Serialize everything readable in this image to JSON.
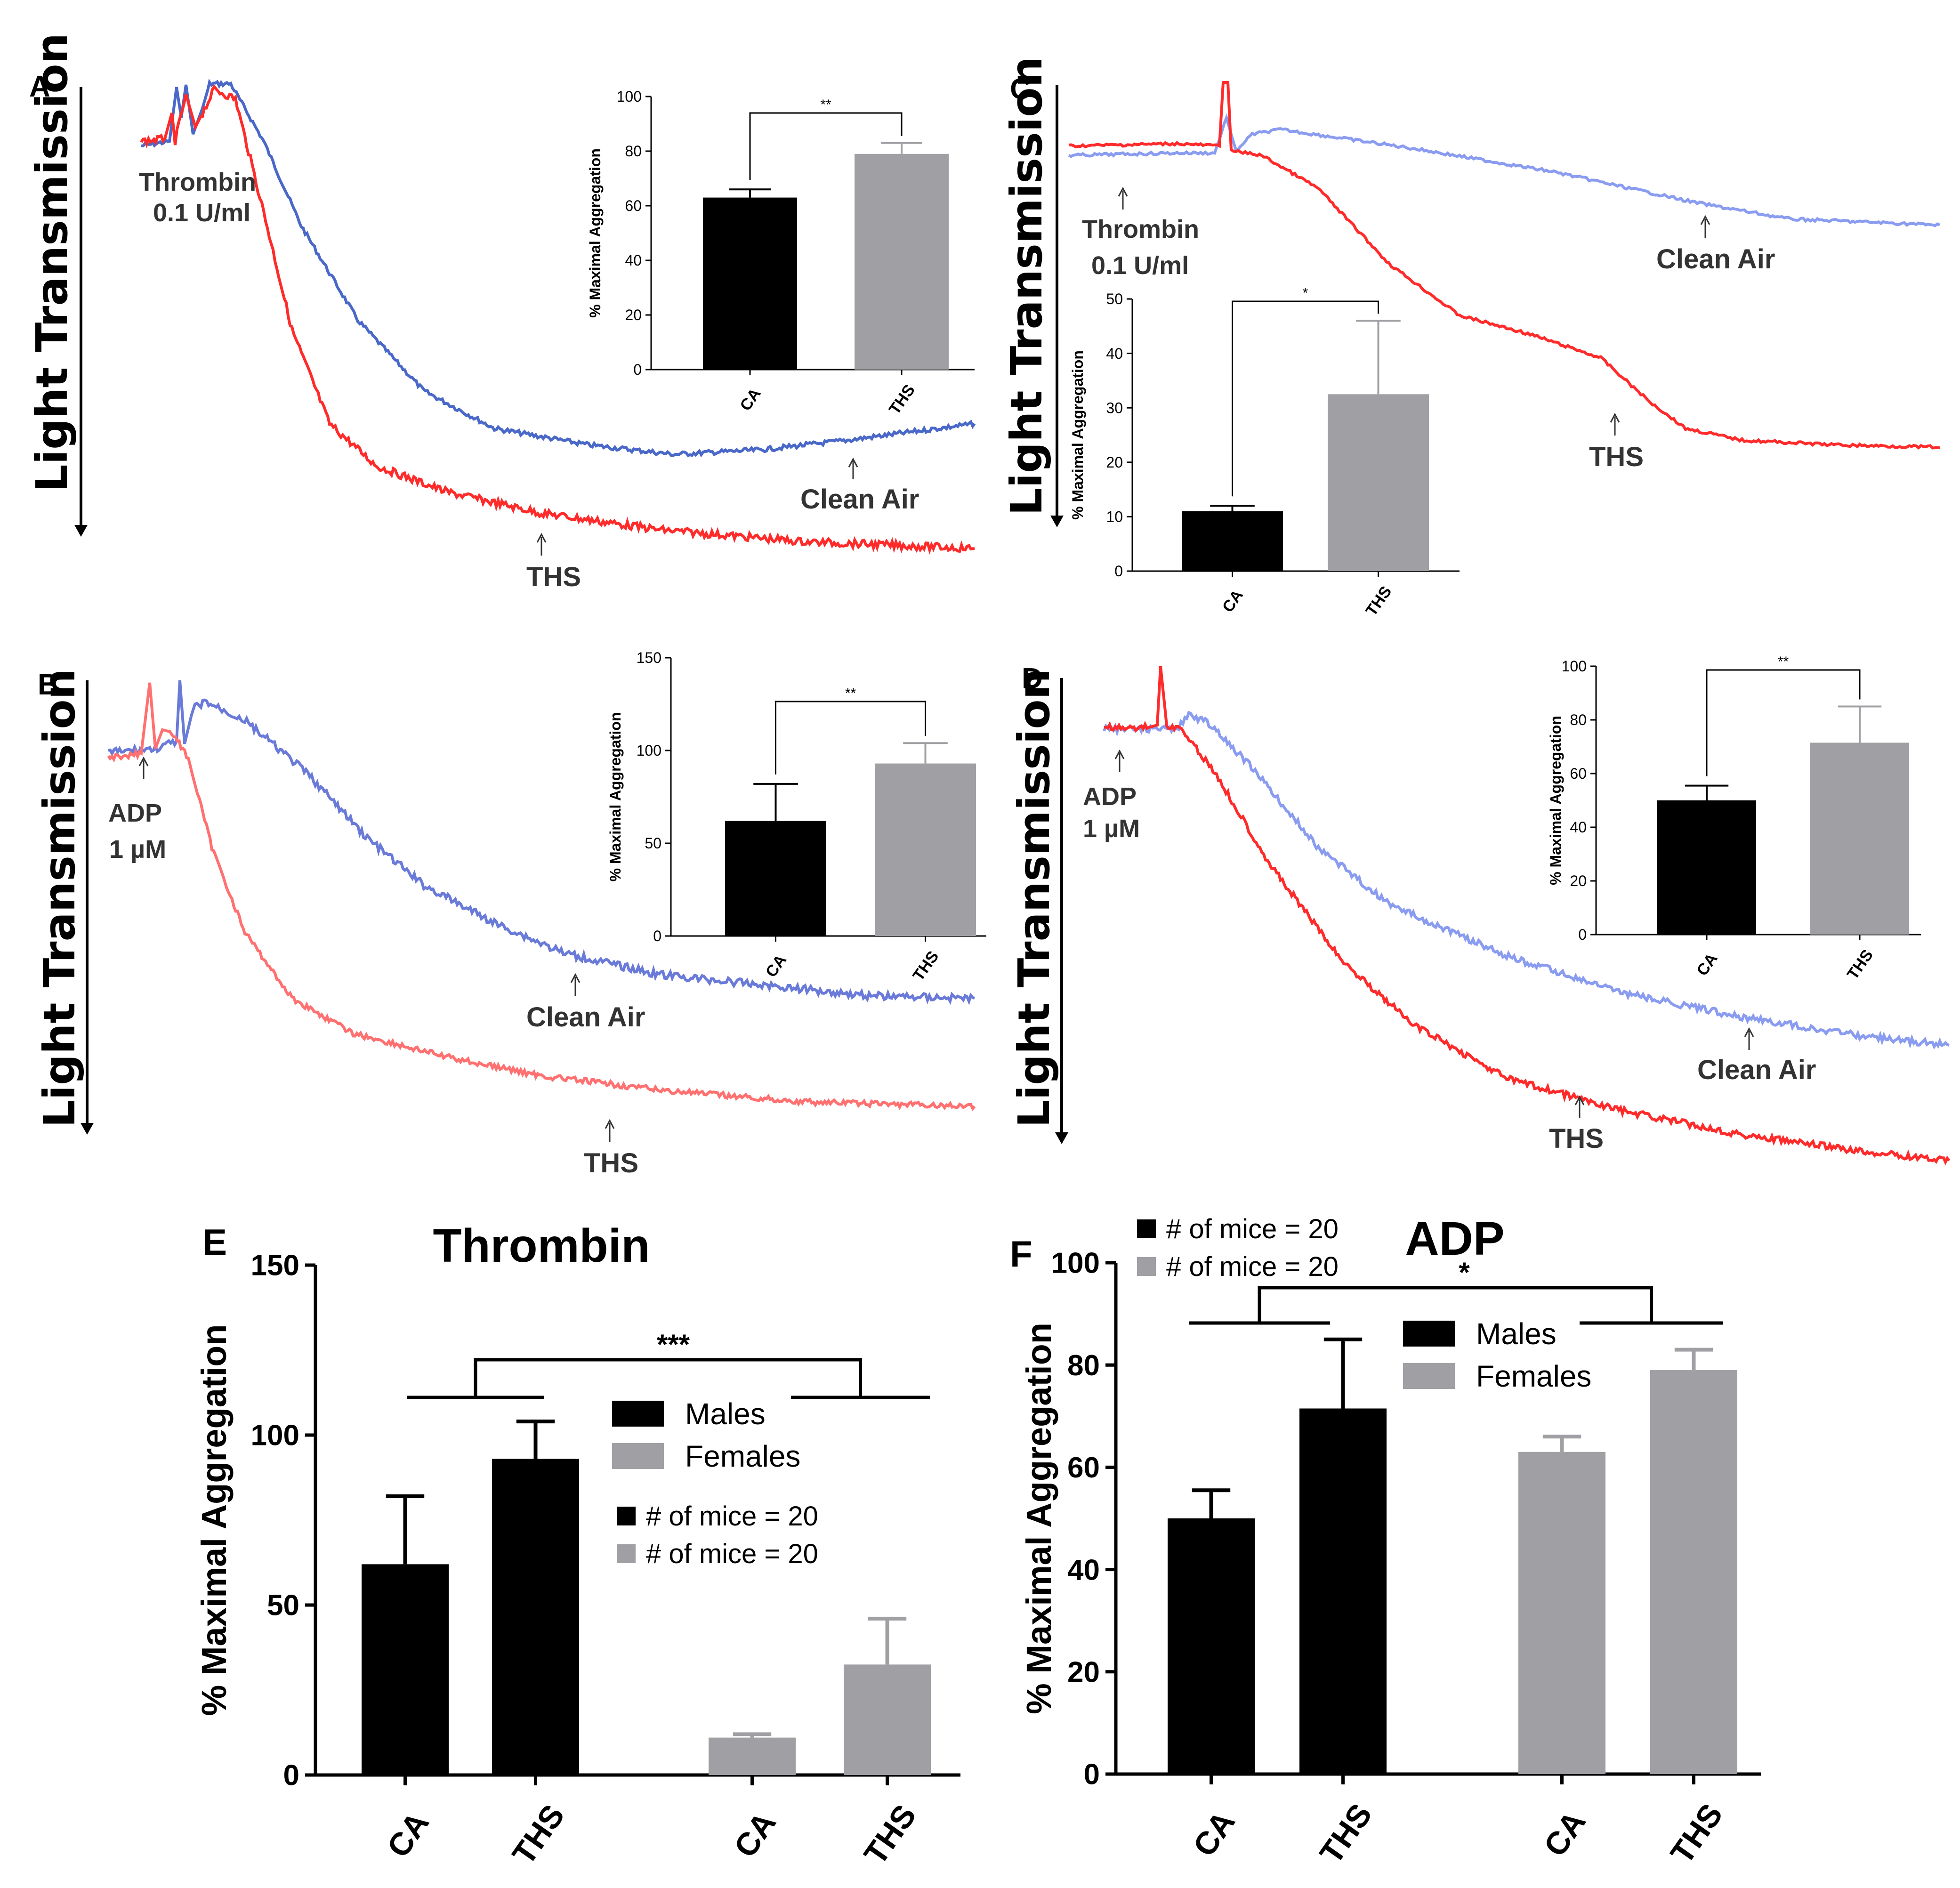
{
  "figure": {
    "background": "#ffffff",
    "colors": {
      "red": "#ff2b2b",
      "blue": "#4a68c8",
      "black": "#000000",
      "grey": "#a0a0a4"
    }
  },
  "panels": {
    "A": {
      "letter": "A",
      "ylabel": "Light Transmission",
      "agonist_line1": "Thrombin",
      "agonist_line2": "0.1 U/ml",
      "label_clean": "Clean Air",
      "label_ths": "THS"
    },
    "B": {
      "letter": "B",
      "ylabel": "Light Transmission",
      "agonist_line1": "ADP",
      "agonist_line2": "1 µM",
      "label_clean": "Clean Air",
      "label_ths": "THS"
    },
    "C": {
      "letter": "C",
      "ylabel": "Light Transmission",
      "agonist_line1": "Thrombin",
      "agonist_line2": "0.1 U/ml",
      "label_clean": "Clean Air",
      "label_ths": "THS"
    },
    "D": {
      "letter": "D",
      "ylabel": "Light Transmission",
      "agonist_line1": "ADP",
      "agonist_line2": "1 µM",
      "label_clean": "Clean Air",
      "label_ths": "THS"
    },
    "E": {
      "letter": "E"
    },
    "F": {
      "letter": "F"
    }
  },
  "chart_data": [
    {
      "id": "A_inset",
      "type": "bar",
      "categories": [
        "CA",
        "THS"
      ],
      "values": [
        63,
        79
      ],
      "errors": [
        3,
        4
      ],
      "ylabel": "% Maximal Aggregation",
      "ylim": [
        0,
        100
      ],
      "yticks": [
        0,
        20,
        40,
        60,
        80,
        100
      ],
      "tick_labels": [
        "0",
        "20",
        "40",
        "60",
        "80",
        "100"
      ],
      "significance": "**"
    },
    {
      "id": "B_inset",
      "type": "bar",
      "categories": [
        "CA",
        "THS"
      ],
      "values": [
        62,
        93
      ],
      "errors": [
        20,
        11
      ],
      "ylabel": "% Maximal Aggregation",
      "ylim": [
        0,
        150
      ],
      "yticks": [
        0,
        50,
        100,
        150
      ],
      "tick_labels": [
        "0",
        "50",
        "100",
        "150"
      ],
      "significance": "**"
    },
    {
      "id": "C_inset",
      "type": "bar",
      "categories": [
        "CA",
        "THS"
      ],
      "values": [
        11,
        32.5
      ],
      "errors": [
        1,
        13.5
      ],
      "ylabel": "% Maximal Aggregation",
      "ylim": [
        0,
        50
      ],
      "yticks": [
        0,
        10,
        20,
        30,
        40,
        50
      ],
      "tick_labels": [
        "0",
        "10",
        "20",
        "30",
        "40",
        "50"
      ],
      "significance": "*"
    },
    {
      "id": "D_inset",
      "type": "bar",
      "categories": [
        "CA",
        "THS"
      ],
      "values": [
        50,
        71.5
      ],
      "errors": [
        5.5,
        13.5
      ],
      "ylabel": "% Maximal Aggregation",
      "ylim": [
        0,
        100
      ],
      "yticks": [
        0,
        20,
        40,
        60,
        80,
        100
      ],
      "tick_labels": [
        "0",
        "20",
        "40",
        "60",
        "80",
        "100"
      ],
      "significance": "**"
    },
    {
      "id": "E",
      "type": "bar",
      "title": "Thrombin",
      "ylabel": "% Maximal Aggregation",
      "ylim": [
        0,
        150
      ],
      "yticks": [
        0,
        50,
        100,
        150
      ],
      "tick_labels": [
        "0",
        "50",
        "100",
        "150"
      ],
      "categories": [
        "CA",
        "THS",
        "CA",
        "THS"
      ],
      "values": [
        62,
        93,
        11,
        32.5
      ],
      "errors": [
        20,
        11,
        1,
        13.5
      ],
      "bar_colors": [
        "#000000",
        "#000000",
        "#a0a0a4",
        "#a0a0a4"
      ],
      "legend": [
        "Males",
        "Females"
      ],
      "n_legend": [
        "# of mice = 20",
        "# of mice = 20"
      ],
      "significance": "***"
    },
    {
      "id": "F",
      "type": "bar",
      "title": "ADP",
      "ylabel": "% Maximal Aggregation",
      "ylim": [
        0,
        100
      ],
      "yticks": [
        0,
        20,
        40,
        60,
        80,
        100
      ],
      "tick_labels": [
        "0",
        "20",
        "40",
        "60",
        "80",
        "100"
      ],
      "categories": [
        "CA",
        "THS",
        "CA",
        "THS"
      ],
      "values": [
        50,
        71.5,
        63,
        79
      ],
      "errors": [
        5.5,
        13.5,
        3,
        4
      ],
      "bar_colors": [
        "#000000",
        "#000000",
        "#a0a0a4",
        "#a0a0a4"
      ],
      "legend": [
        "Males",
        "Females"
      ],
      "n_legend": [
        "# of mice = 20",
        "# of mice = 20"
      ],
      "significance": "*"
    }
  ]
}
